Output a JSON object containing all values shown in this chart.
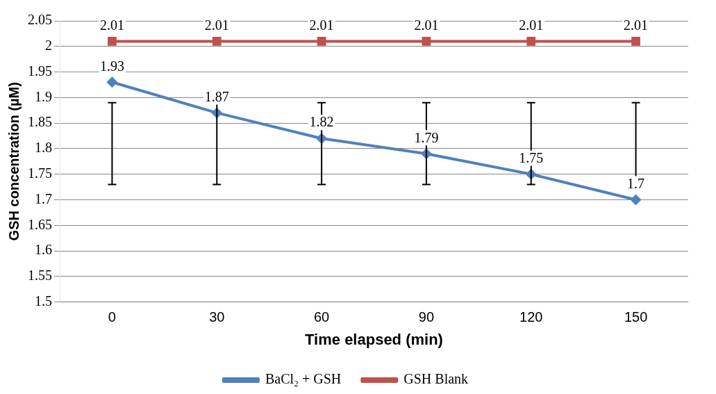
{
  "chart_data": {
    "type": "line",
    "xlabel": "Time elapsed (min)",
    "ylabel": "GSH concentration (µM)",
    "categories": [
      "0",
      "30",
      "60",
      "90",
      "120",
      "150"
    ],
    "ylim": [
      1.5,
      2.05
    ],
    "yticks": [
      1.5,
      1.55,
      1.6,
      1.65,
      1.7,
      1.75,
      1.8,
      1.85,
      1.9,
      1.95,
      2,
      2.05
    ],
    "grid": "y",
    "legend": "bottom",
    "data_labels": true,
    "series": [
      {
        "name": "BaCl₂ + GSH",
        "color": "#4f81bd",
        "marker": "diamond",
        "values": [
          1.93,
          1.87,
          1.82,
          1.79,
          1.75,
          1.7
        ],
        "errors": [
          [
            1.73,
            1.89
          ],
          [
            1.73,
            1.89
          ],
          [
            1.73,
            1.89
          ],
          [
            1.73,
            1.89
          ],
          [
            1.73,
            1.89
          ],
          [
            1.73,
            1.89
          ]
        ]
      },
      {
        "name": "GSH Blank",
        "color": "#c0504d",
        "marker": "square",
        "values": [
          2.01,
          2.01,
          2.01,
          2.01,
          2.01,
          2.01
        ]
      }
    ]
  }
}
